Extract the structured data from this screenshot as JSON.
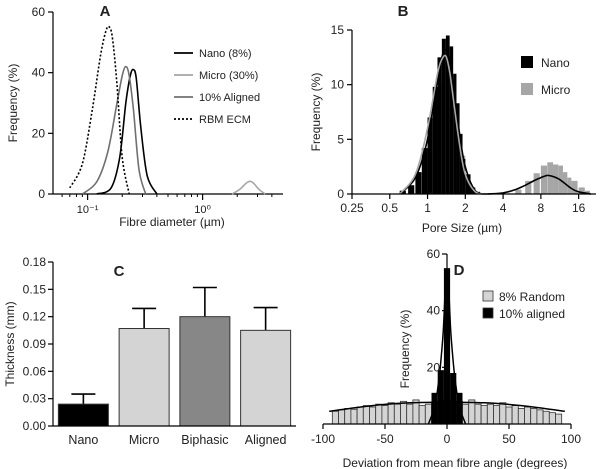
{
  "chart_data": [
    {
      "panel": "A",
      "type": "line",
      "xlabel": "Fibre diameter (µm)",
      "ylabel": "Frequency (%)",
      "xscale": "log",
      "xlim": [
        0.05,
        5
      ],
      "ylim": [
        0,
        60
      ],
      "yticks": [
        "0",
        "20",
        "40",
        "60"
      ],
      "xticks": [
        {
          "value": 0.1,
          "label": "10⁻¹"
        },
        {
          "value": 1,
          "label": "10⁰"
        }
      ],
      "legend_position": "top-right",
      "series": [
        {
          "name": "Nano (8%)",
          "color": "#000000",
          "dash": "solid",
          "x": [
            0.12,
            0.16,
            0.19,
            0.215,
            0.235,
            0.25,
            0.265,
            0.29,
            0.33,
            0.4
          ],
          "y": [
            0,
            2,
            12,
            30,
            39,
            41,
            38,
            22,
            6,
            0
          ]
        },
        {
          "name": "Micro (30%)",
          "color": "#a6a6a6",
          "dash": "solid",
          "x": [
            1.8,
            2.1,
            2.4,
            2.6,
            2.8,
            3.1,
            3.5
          ],
          "y": [
            0,
            1.5,
            3.6,
            4.2,
            3.4,
            1.5,
            0
          ]
        },
        {
          "name": "10% Aligned",
          "color": "#707070",
          "dash": "solid",
          "x": [
            0.09,
            0.12,
            0.15,
            0.18,
            0.2,
            0.215,
            0.23,
            0.25,
            0.28,
            0.32
          ],
          "y": [
            0,
            4,
            14,
            30,
            39,
            42,
            39,
            28,
            8,
            0
          ]
        },
        {
          "name": "RBM ECM",
          "color": "#000000",
          "dash": "dotted",
          "x": [
            0.07,
            0.09,
            0.11,
            0.13,
            0.145,
            0.155,
            0.165,
            0.18,
            0.2,
            0.23
          ],
          "y": [
            2,
            10,
            28,
            46,
            54,
            55,
            51,
            36,
            12,
            0
          ]
        }
      ]
    },
    {
      "panel": "B",
      "type": "bar",
      "xlabel": "Pore Size (µm)",
      "ylabel": "Frequency (%)",
      "xscale": "log2",
      "xlim": [
        0.25,
        22
      ],
      "ylim": [
        0,
        15
      ],
      "yticks": [
        "0",
        "5",
        "10",
        "15"
      ],
      "xticks": [
        "0.25",
        "0.5",
        "1",
        "2",
        "4",
        "8",
        "16"
      ],
      "legend_position": "right",
      "series": [
        {
          "name": "Nano",
          "color": "#000000",
          "bins": [
            0.6,
            0.7,
            0.8,
            0.9,
            1.0,
            1.1,
            1.2,
            1.3,
            1.4,
            1.5,
            1.6,
            1.7,
            1.8,
            1.9,
            2.0,
            2.2,
            2.4
          ],
          "values": [
            0.3,
            0.8,
            2.0,
            4.2,
            7.0,
            9.8,
            12.5,
            14.2,
            14.5,
            13.5,
            11.0,
            8.3,
            5.5,
            3.2,
            1.8,
            0.6,
            0.2
          ]
        },
        {
          "name": "Micro",
          "color": "#a6a6a6",
          "bins": [
            1.0,
            1.1,
            1.2,
            1.3,
            1.4,
            1.5,
            1.6,
            1.7,
            1.8,
            2.0,
            5.0,
            6.0,
            7.0,
            8.0,
            9.0,
            10.0,
            11.0,
            12.0,
            13.0,
            14.0,
            16.0,
            18.0
          ],
          "values": [
            3.5,
            7.0,
            10.0,
            12.3,
            12.5,
            11.0,
            8.5,
            5.8,
            3.5,
            1.2,
            0.4,
            1.2,
            1.9,
            2.6,
            2.9,
            2.7,
            2.6,
            2.0,
            1.5,
            1.2,
            0.6,
            0.3
          ]
        }
      ],
      "fits": [
        {
          "name": "Nano fit",
          "color": "#000000",
          "x": [
            0.6,
            0.8,
            1.0,
            1.2,
            1.3,
            1.4,
            1.5,
            1.6,
            1.8,
            2.0,
            2.4,
            3.0
          ],
          "y": [
            0,
            1.5,
            5.0,
            10.5,
            12.5,
            13.2,
            12.3,
            10.0,
            5.5,
            2.5,
            0.3,
            0
          ]
        },
        {
          "name": "Micro fit",
          "color": "#a6a6a6",
          "x": [
            0.6,
            0.8,
            1.0,
            1.2,
            1.3,
            1.4,
            1.5,
            1.6,
            1.8,
            2.0,
            2.4,
            3.0
          ],
          "y": [
            0,
            1.8,
            6.0,
            11.0,
            12.3,
            12.6,
            11.2,
            8.8,
            4.5,
            1.8,
            0.2,
            0
          ]
        },
        {
          "name": "Micro peak fit",
          "color": "#000000",
          "x": [
            3.0,
            4.0,
            5.0,
            6.0,
            7.0,
            8.0,
            9.0,
            10.0,
            11.0,
            12.0,
            14.0,
            16.0,
            20.0
          ],
          "y": [
            0,
            0.1,
            0.4,
            0.8,
            1.2,
            1.5,
            1.7,
            1.6,
            1.4,
            1.1,
            0.5,
            0.2,
            0
          ]
        }
      ]
    },
    {
      "panel": "C",
      "type": "bar",
      "ylabel": "Thickness (mm)",
      "ylim": [
        0,
        0.18
      ],
      "yticks": [
        "0.00",
        "0.03",
        "0.06",
        "0.09",
        "0.12",
        "0.15",
        "0.18"
      ],
      "categories": [
        "Nano",
        "Micro",
        "Biphasic",
        "Aligned"
      ],
      "values": [
        0.024,
        0.107,
        0.12,
        0.105
      ],
      "errors": [
        0.011,
        0.022,
        0.032,
        0.025
      ],
      "colors": [
        "#000000",
        "#d4d4d4",
        "#878787",
        "#d4d4d4"
      ]
    },
    {
      "panel": "D",
      "type": "bar",
      "xlabel": "Deviation from mean fibre angle (degrees)",
      "ylabel": "Frequency (%)",
      "xlim": [
        -100,
        100
      ],
      "ylim": [
        0,
        60
      ],
      "yticks": [
        "20",
        "40",
        "60"
      ],
      "xticks": [
        "-100",
        "-50",
        "0",
        "50",
        "100"
      ],
      "legend_position": "top-right",
      "series": [
        {
          "name": "8% Random",
          "color": "#d4d4d4",
          "bins": [
            -90,
            -85,
            -80,
            -75,
            -70,
            -65,
            -60,
            -55,
            -50,
            -45,
            -40,
            -35,
            -30,
            -25,
            -20,
            -15,
            -10,
            -5,
            0,
            5,
            10,
            15,
            20,
            25,
            30,
            35,
            40,
            45,
            50,
            55,
            60,
            65,
            70,
            75,
            80,
            85,
            90
          ],
          "values": [
            4.5,
            5.0,
            5.5,
            5.2,
            6.0,
            6.5,
            6.0,
            7.0,
            6.5,
            7.5,
            7.0,
            8.0,
            7.0,
            8.5,
            6.5,
            7.0,
            7.5,
            8.0,
            8.5,
            7.5,
            8.0,
            7.0,
            8.5,
            7.0,
            6.5,
            7.0,
            6.5,
            7.5,
            6.0,
            6.5,
            5.5,
            6.0,
            5.5,
            5.0,
            4.5,
            4.0,
            3.5
          ]
        },
        {
          "name": "10% aligned",
          "color": "#000000",
          "bins": [
            -10,
            -5,
            0,
            5,
            10
          ],
          "values": [
            11.0,
            19.0,
            55.0,
            18.0,
            11.0
          ]
        }
      ],
      "fits": [
        {
          "name": "Random fit",
          "color": "#000000",
          "x": [
            -95,
            -60,
            -30,
            0,
            30,
            60,
            95
          ],
          "y": [
            4.5,
            6.5,
            7.5,
            7.7,
            7.5,
            6.5,
            4.5
          ]
        },
        {
          "name": "Aligned fit",
          "color": "#000000",
          "x": [
            -15,
            -10,
            -7,
            -5,
            -3,
            -1.5,
            0,
            1.5,
            3,
            5,
            7,
            10,
            15
          ],
          "y": [
            0,
            6,
            14,
            22,
            33,
            46,
            53,
            46,
            33,
            22,
            14,
            6,
            0
          ]
        }
      ]
    }
  ]
}
